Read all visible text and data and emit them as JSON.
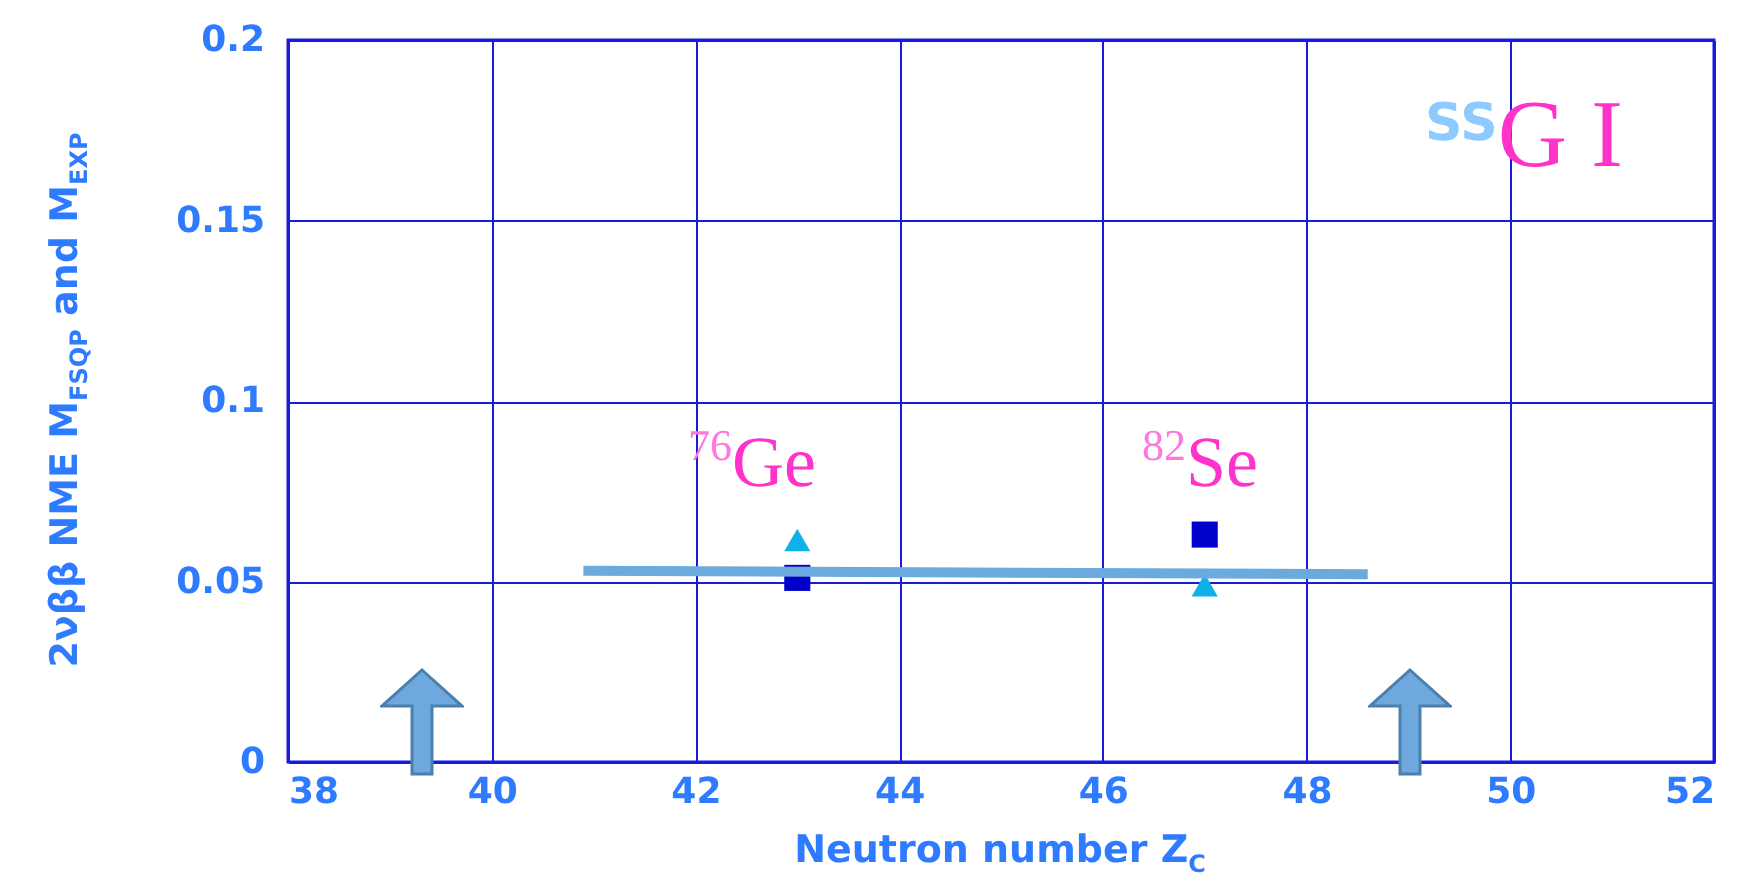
{
  "chart_data": {
    "type": "scatter",
    "xlabel": "Neutron number Z$_{C}$",
    "ylabel": "2νββ NME M$_{FSQP}$ and M$_{EXP}$",
    "x": [
      43,
      47
    ],
    "series": [
      {
        "marker": "triangle",
        "color": "#10b0e8",
        "values": [
          0.0615,
          0.049
        ]
      },
      {
        "marker": "square",
        "color": "#0000cc",
        "values": [
          0.051,
          0.063
        ]
      },
      {
        "type": "line",
        "marker": "none",
        "color": "#6aaadc",
        "x": [
          40.9,
          48.6
        ],
        "values": [
          0.053,
          0.052
        ]
      }
    ],
    "xlim": [
      38,
      52
    ],
    "xticks": [
      38,
      40,
      42,
      44,
      46,
      48,
      50,
      52
    ],
    "ylim": [
      0,
      0.2
    ],
    "yticks": [
      0,
      0.05,
      0.1,
      0.15,
      0.2
    ],
    "grid": true,
    "annotations": [
      "$^{76}$Ge",
      "$^{82}$Se",
      "$^{SS}$G I"
    ]
  }
}
